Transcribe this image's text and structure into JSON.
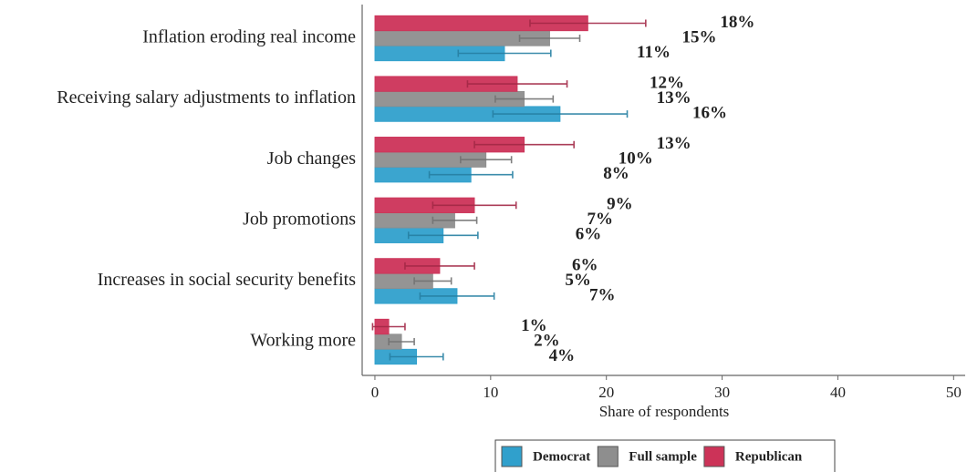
{
  "chart_data": {
    "type": "bar",
    "orientation": "horizontal",
    "xlabel": "Share of respondents",
    "categories": [
      "Inflation eroding real income",
      "Receiving salary adjustments to inflation",
      "Job changes",
      "Job promotions",
      "Increases in social security benefits",
      "Working more"
    ],
    "series": [
      {
        "name": "Democrat",
        "color": "#30a0cc",
        "values": [
          11.2,
          16.0,
          8.3,
          5.9,
          7.1,
          3.6
        ],
        "errors": [
          4.0,
          5.8,
          3.6,
          3.0,
          3.2,
          2.3
        ],
        "value_labels": [
          "11%",
          "16%",
          "8%",
          "6%",
          "7%",
          "4%"
        ]
      },
      {
        "name": "Full sample",
        "color": "#8e8e8e",
        "values": [
          15.1,
          12.9,
          9.6,
          6.9,
          5.0,
          2.3
        ],
        "errors": [
          2.6,
          2.5,
          2.2,
          1.9,
          1.6,
          1.1
        ],
        "value_labels": [
          "15%",
          "13%",
          "10%",
          "7%",
          "5%",
          "2%"
        ]
      },
      {
        "name": "Republican",
        "color": "#cc3358",
        "values": [
          18.4,
          12.3,
          12.9,
          8.6,
          5.6,
          1.2
        ],
        "errors": [
          5.0,
          4.3,
          4.3,
          3.6,
          3.0,
          1.4
        ],
        "value_labels": [
          "18%",
          "12%",
          "13%",
          "9%",
          "6%",
          "1%"
        ]
      }
    ],
    "xlim": [
      -1.1,
      51
    ],
    "xticks": [
      0,
      10,
      20,
      30,
      40,
      50
    ],
    "grid": false,
    "legend": "bottom"
  }
}
